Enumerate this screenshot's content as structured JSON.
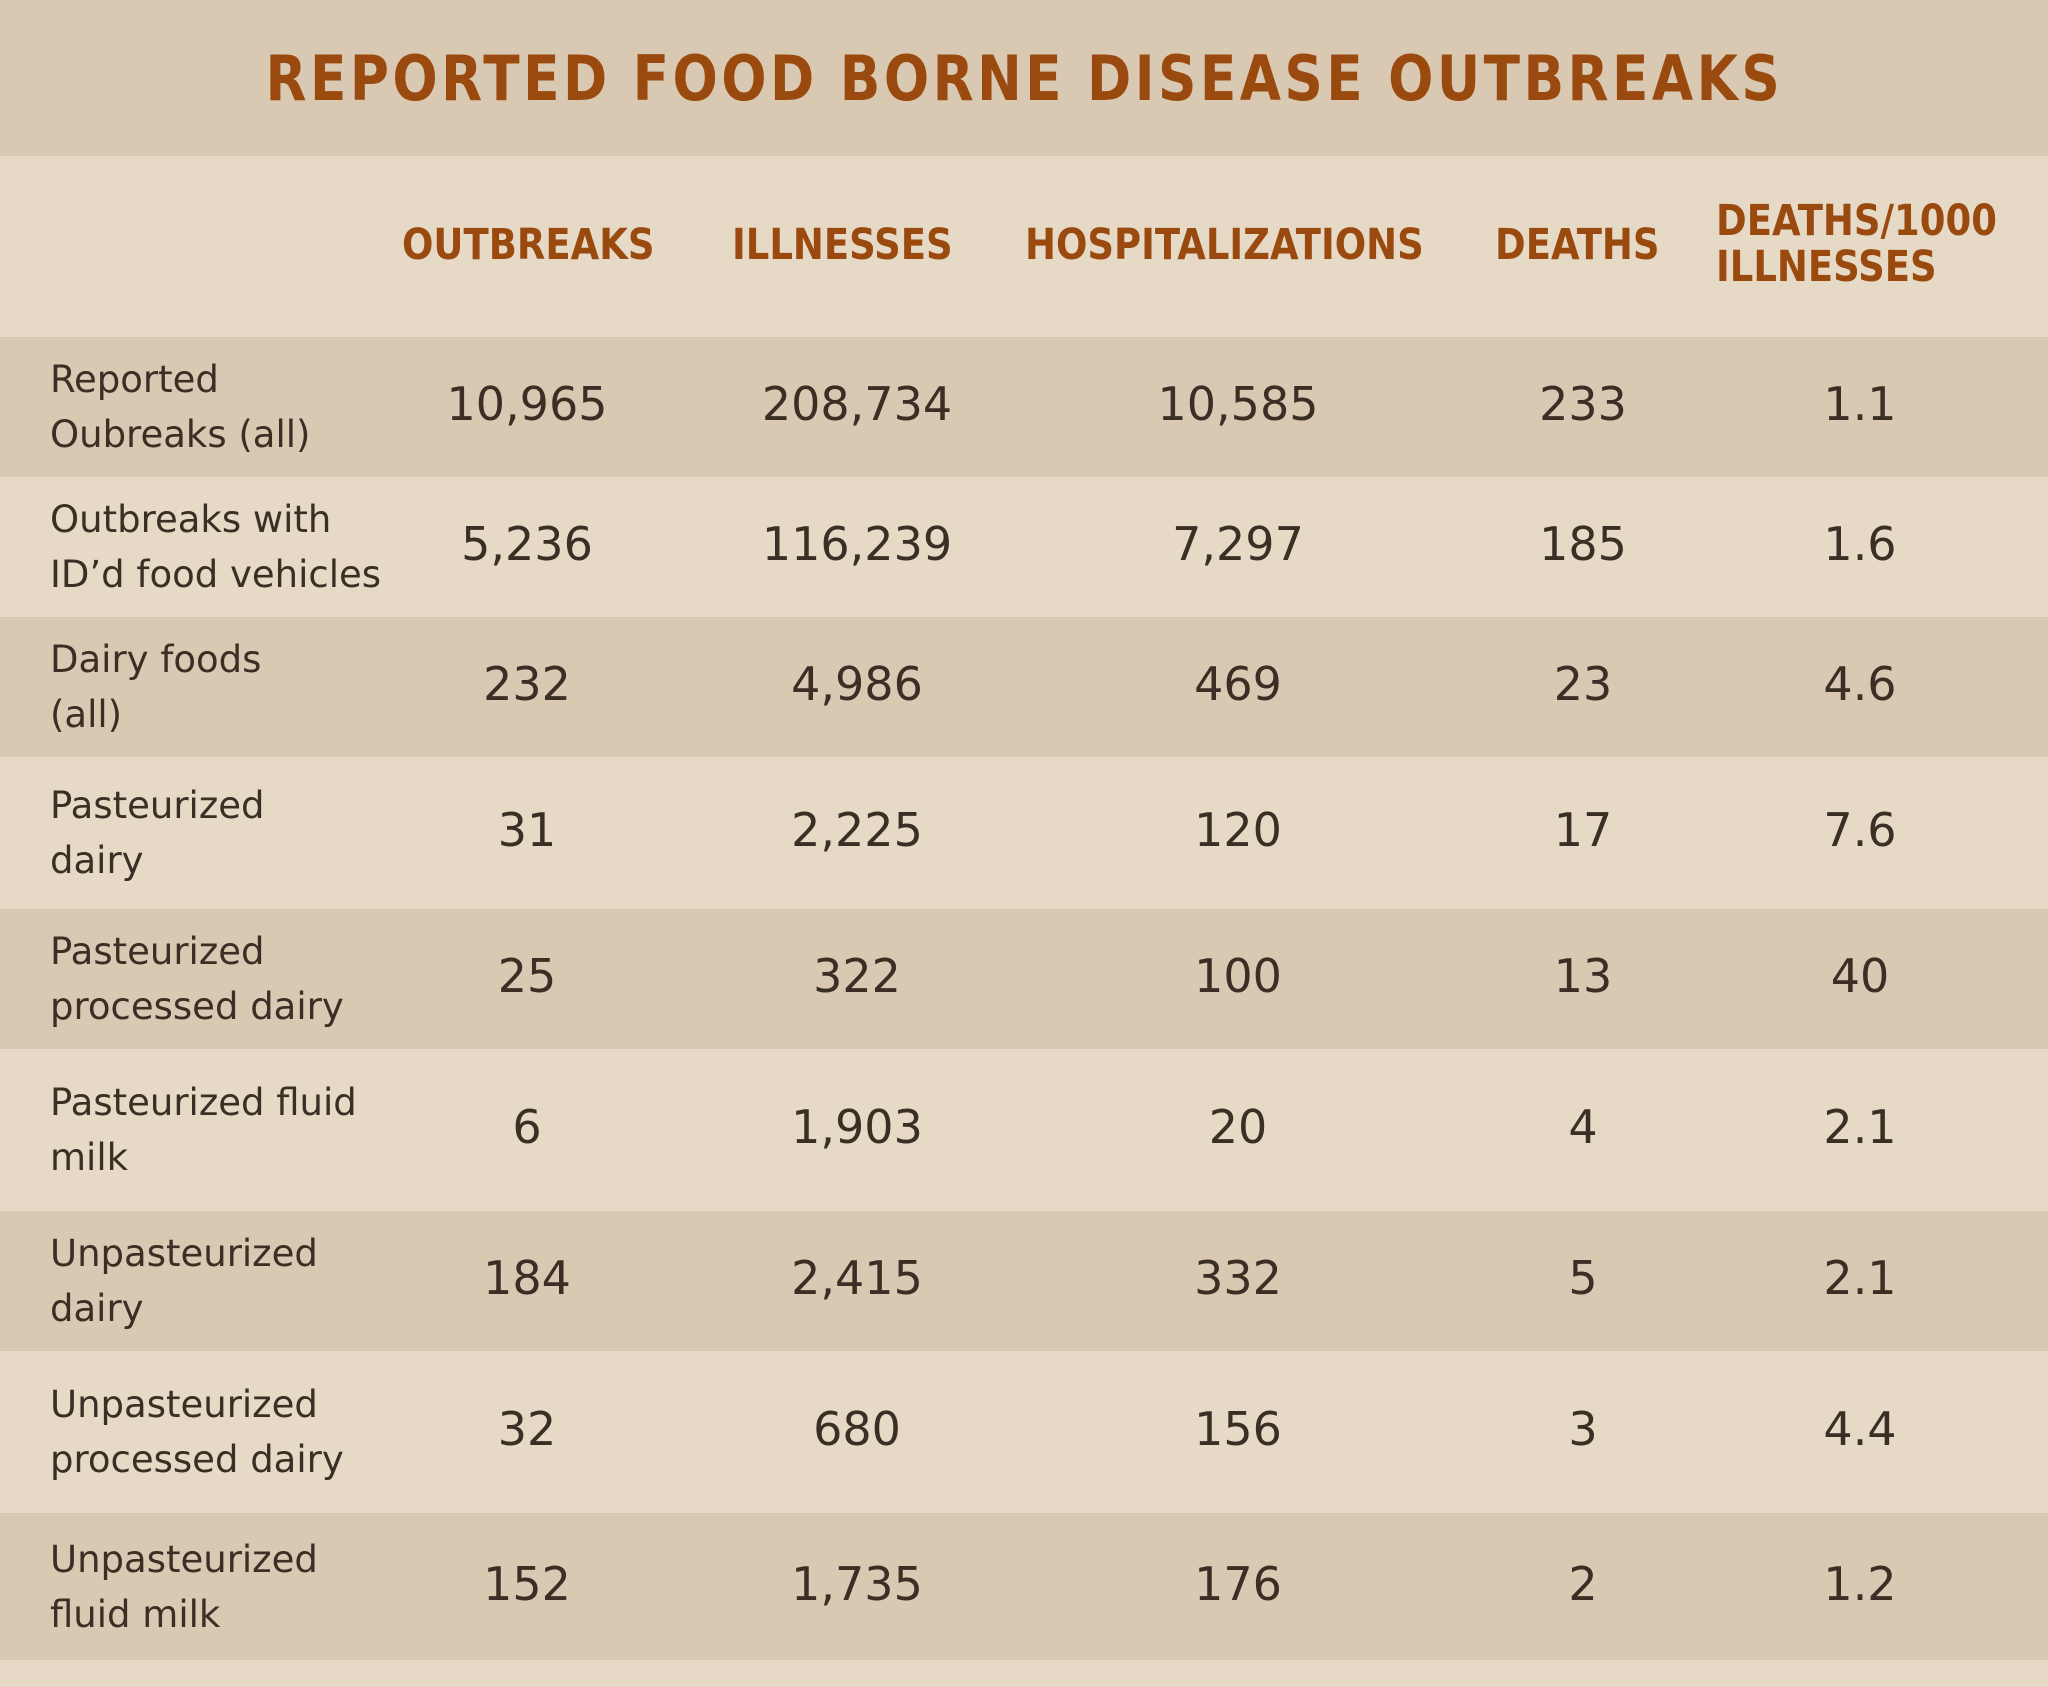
{
  "title": "REPORTED FOOD BORNE DISEASE OUTBREAKS",
  "chart_data": {
    "type": "table",
    "title": "REPORTED FOOD BORNE DISEASE OUTBREAKS",
    "columns": [
      "OUTBREAKS",
      "ILLNESSES",
      "HOSPITALIZATIONS",
      "DEATHS",
      "DEATHS/1000\nILLNESSES"
    ],
    "rows": [
      {
        "label": "Reported\nOubreaks (all)",
        "values": [
          "10,965",
          "208,734",
          "10,585",
          "233",
          "1.1"
        ]
      },
      {
        "label": "Outbreaks with\nID’d food vehicles",
        "values": [
          "5,236",
          "116,239",
          "7,297",
          "185",
          "1.6"
        ]
      },
      {
        "label": "Dairy foods\n(all)",
        "values": [
          "232",
          "4,986",
          "469",
          "23",
          "4.6"
        ]
      },
      {
        "label": "Pasteurized\ndairy",
        "values": [
          "31",
          "2,225",
          "120",
          "17",
          "7.6"
        ]
      },
      {
        "label": "Pasteurized\nprocessed dairy",
        "values": [
          "25",
          "322",
          "100",
          "13",
          "40"
        ]
      },
      {
        "label": "Pasteurized fluid\nmilk",
        "values": [
          "6",
          "1,903",
          "20",
          "4",
          "2.1"
        ]
      },
      {
        "label": "Unpasteurized\ndairy",
        "values": [
          "184",
          "2,415",
          "332",
          "5",
          "2.1"
        ]
      },
      {
        "label": "Unpasteurized\nprocessed dairy",
        "values": [
          "32",
          "680",
          "156",
          "3",
          "4.4"
        ]
      },
      {
        "label": "Unpasteurized\nfluid milk",
        "values": [
          "152",
          "1,735",
          "176",
          "2",
          "1.2"
        ]
      }
    ]
  },
  "colors": {
    "title_text": "#9b4a0f",
    "band_dark": "#d9c9b3",
    "band_light": "#e6dac7",
    "body_text": "#3a2e25"
  }
}
